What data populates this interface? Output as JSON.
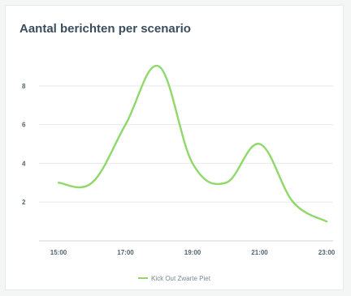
{
  "title": "Aantal berichten per scenario",
  "colors": {
    "line": "#8fd86a",
    "grid": "#e6e8ea",
    "axis": "#cfd4d8"
  },
  "chart_data": {
    "type": "line",
    "title": "Aantal berichten per scenario",
    "xlabel": "",
    "ylabel": "",
    "x": [
      "15:00",
      "16:00",
      "17:00",
      "18:00",
      "19:00",
      "20:00",
      "21:00",
      "22:00",
      "23:00"
    ],
    "x_ticks": [
      "15:00",
      "17:00",
      "19:00",
      "21:00",
      "23:00"
    ],
    "y_ticks": [
      2,
      4,
      6,
      8
    ],
    "ylim": [
      0,
      9.5
    ],
    "grid": true,
    "legend_position": "bottom-center",
    "series": [
      {
        "name": "Kick Out Zwarte Piet",
        "values": [
          3,
          3,
          6,
          9,
          4,
          3,
          5,
          2,
          1
        ]
      }
    ]
  }
}
